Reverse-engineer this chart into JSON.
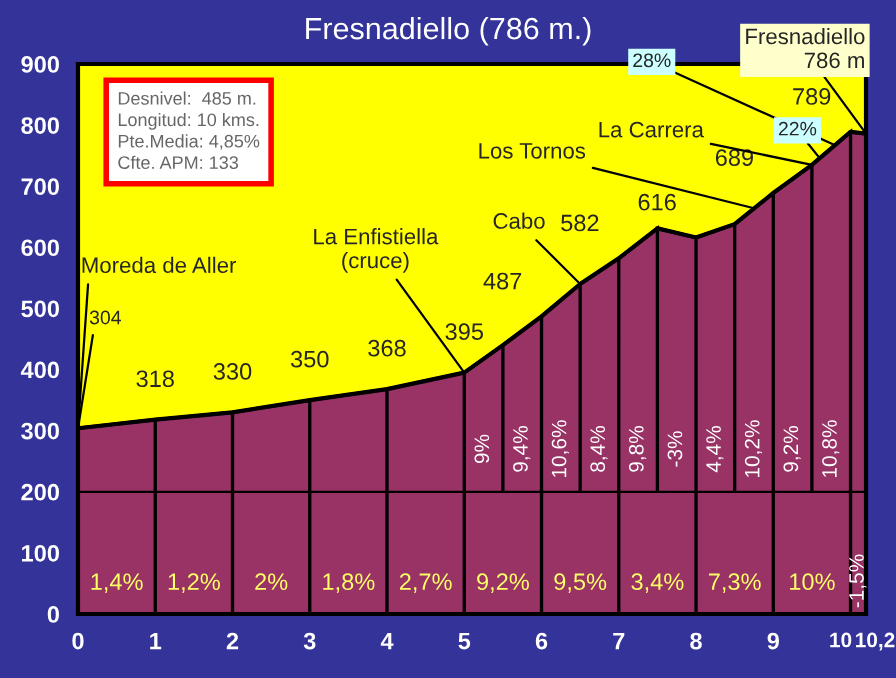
{
  "chart_data": {
    "type": "area",
    "title": "Fresnadiello (786 m.)",
    "x": [
      0,
      1,
      2,
      3,
      4,
      5,
      5.5,
      6,
      6.5,
      7,
      7.5,
      8,
      8.5,
      9,
      9.5,
      10,
      10.2
    ],
    "series": [
      {
        "color": "#993366",
        "values": [
          304,
          318,
          330,
          350,
          368,
          395,
          440,
          487,
          540,
          582,
          631,
          616,
          638,
          689,
          735,
          789,
          786
        ],
        "value_labels": [
          "304",
          "318",
          "330",
          "350",
          "368",
          "395",
          null,
          "487",
          null,
          "582",
          null,
          "616",
          null,
          "689",
          null,
          "789",
          null
        ]
      }
    ],
    "xlim": [
      0,
      10.2
    ],
    "xticks": [
      0,
      1,
      2,
      3,
      4,
      5,
      6,
      7,
      8,
      9,
      10,
      {
        "value": 10.2,
        "label": "10,2"
      }
    ],
    "ylim": [
      0,
      900
    ],
    "yticks": [
      0,
      100,
      200,
      300,
      400,
      500,
      600,
      700,
      800,
      900
    ],
    "ref_lines": [
      {
        "axis": "y",
        "value": 200,
        "color": "#000000"
      }
    ],
    "annotations": [
      "Desnivel:  485 m.\nLongitud: 10 kms.\nPte.Media: 4,85%\nCfte. APM: 133",
      {
        "text": "Moreda de Aller",
        "x": 0,
        "y": 304
      },
      {
        "text": "La Enfistiella\n(cruce)",
        "x": 5,
        "y": 395
      },
      {
        "text": "Cabo",
        "x": 6.5,
        "y": 540
      },
      {
        "text": "Los Tornos",
        "x": 8.75,
        "y": 664
      },
      {
        "text": "La Carrera",
        "x": 9.5,
        "y": 735
      },
      {
        "text": "28%",
        "x": 9.8,
        "y": 767
      },
      {
        "text": "22%",
        "x": 9.6,
        "y": 746
      },
      {
        "text": "Fresnadiello\n786 m",
        "x": 10.2,
        "y": 786
      },
      "1,4%",
      "1,2%",
      "2%",
      "1,8%",
      "2,7%",
      "9,2%",
      "9,5%",
      "3,4%",
      "7,3%",
      "10%",
      "9%",
      "9,4%",
      "10,6%",
      "8,4%",
      "9,8%",
      "-3%",
      "4,4%",
      "10,2%",
      "9,2%",
      "10,8%",
      "-1,5%"
    ]
  }
}
